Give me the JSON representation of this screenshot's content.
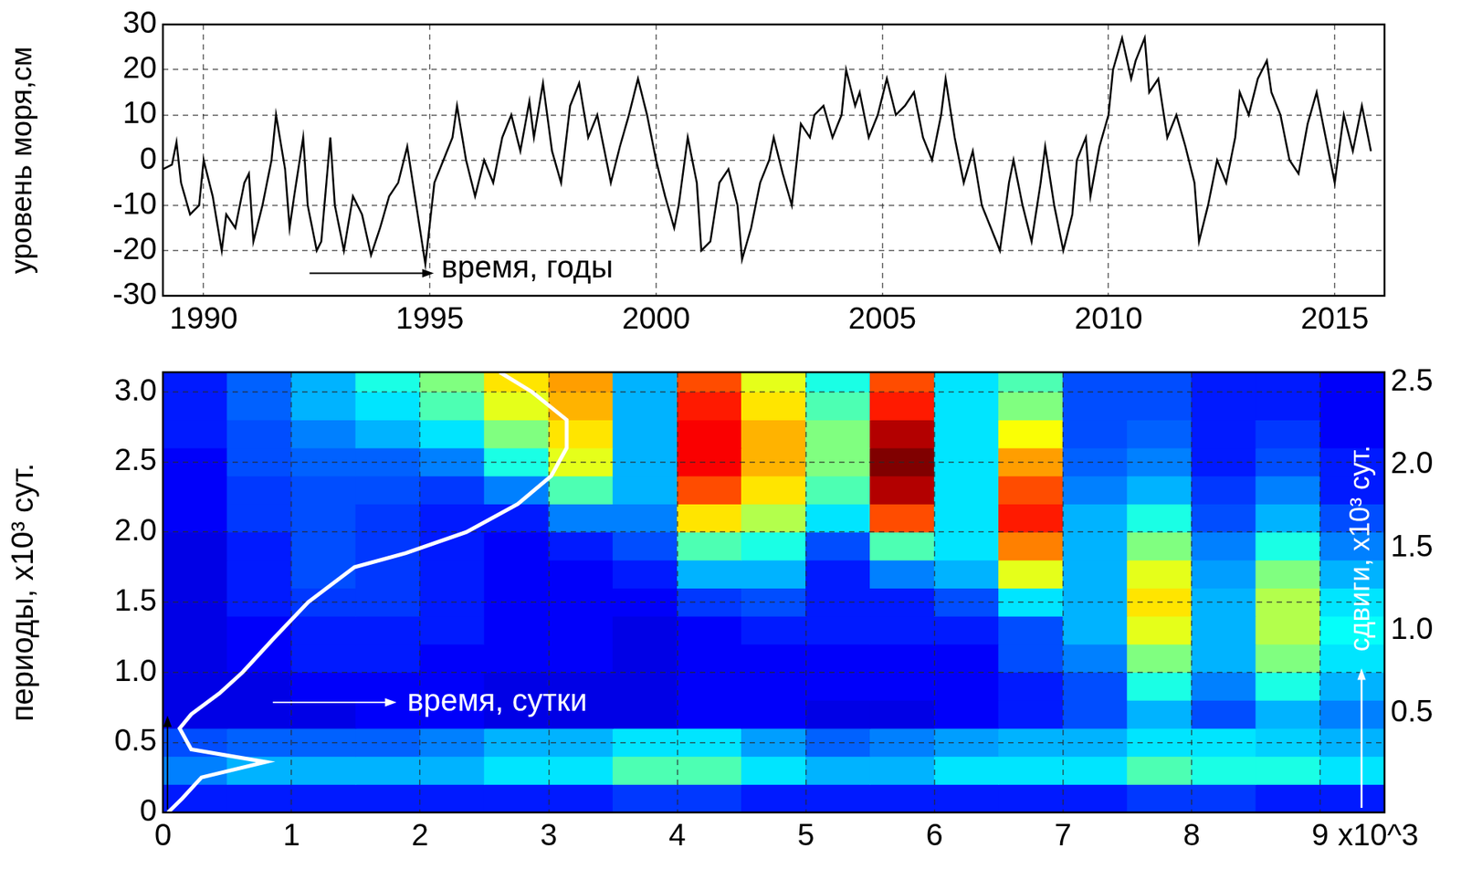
{
  "chart_data": [
    {
      "type": "line",
      "ylabel": "уровень моря,см",
      "color": "#000000",
      "grid": true,
      "xlim": [
        1989.1,
        2016.1
      ],
      "xticks": [
        1990,
        1995,
        2000,
        2005,
        2010,
        2015
      ],
      "ylim": [
        -30,
        30
      ],
      "yticks": [
        -30,
        -20,
        -10,
        0,
        10,
        20,
        30
      ],
      "annotations": [
        {
          "text": "время, годы"
        }
      ],
      "x": [
        1989.1,
        1989.3,
        1989.4,
        1989.5,
        1989.7,
        1989.9,
        1990.0,
        1990.2,
        1990.4,
        1990.5,
        1990.7,
        1990.9,
        1991.0,
        1991.1,
        1991.3,
        1991.5,
        1991.6,
        1991.8,
        1991.9,
        1992.0,
        1992.2,
        1992.3,
        1992.5,
        1992.6,
        1992.8,
        1992.9,
        1993.1,
        1993.3,
        1993.5,
        1993.7,
        1993.9,
        1994.1,
        1994.3,
        1994.5,
        1994.7,
        1994.9,
        1995.1,
        1995.3,
        1995.5,
        1995.6,
        1995.8,
        1996.0,
        1996.2,
        1996.4,
        1996.6,
        1996.8,
        1997.0,
        1997.2,
        1997.3,
        1997.5,
        1997.7,
        1997.9,
        1998.1,
        1998.3,
        1998.5,
        1998.7,
        1998.9,
        1999.0,
        1999.2,
        1999.4,
        1999.6,
        1999.8,
        2000.0,
        2000.2,
        2000.4,
        2000.5,
        2000.7,
        2000.9,
        2001.0,
        2001.2,
        2001.4,
        2001.6,
        2001.8,
        2001.9,
        2002.1,
        2002.3,
        2002.5,
        2002.6,
        2002.8,
        2003.0,
        2003.2,
        2003.4,
        2003.5,
        2003.7,
        2003.9,
        2004.1,
        2004.2,
        2004.4,
        2004.5,
        2004.7,
        2004.9,
        2005.1,
        2005.3,
        2005.5,
        2005.7,
        2005.9,
        2006.1,
        2006.3,
        2006.4,
        2006.6,
        2006.8,
        2007.0,
        2007.2,
        2007.4,
        2007.6,
        2007.8,
        2007.9,
        2008.1,
        2008.3,
        2008.5,
        2008.6,
        2008.8,
        2009.0,
        2009.2,
        2009.3,
        2009.5,
        2009.6,
        2009.8,
        2010.0,
        2010.1,
        2010.3,
        2010.5,
        2010.6,
        2010.8,
        2010.9,
        2011.1,
        2011.3,
        2011.5,
        2011.7,
        2011.9,
        2012.0,
        2012.2,
        2012.4,
        2012.6,
        2012.8,
        2012.9,
        2013.1,
        2013.3,
        2013.5,
        2013.6,
        2013.8,
        2014.0,
        2014.2,
        2014.4,
        2014.6,
        2014.8,
        2015.0,
        2015.2,
        2015.4,
        2015.6,
        2015.8
      ],
      "values": [
        -2,
        -1,
        4,
        -5,
        -12,
        -10,
        0,
        -8,
        -20,
        -12,
        -15,
        -5,
        -3,
        -18,
        -10,
        0,
        10,
        -2,
        -15,
        -8,
        5,
        -10,
        -20,
        -18,
        5,
        -10,
        -20,
        -8,
        -12,
        -21,
        -15,
        -8,
        -5,
        3,
        -10,
        -23,
        -5,
        0,
        5,
        12,
        0,
        -8,
        0,
        -5,
        5,
        10,
        2,
        13,
        5,
        17,
        2,
        -5,
        12,
        17,
        5,
        10,
        0,
        -5,
        3,
        10,
        18,
        10,
        0,
        -8,
        -15,
        -10,
        5,
        -5,
        -20,
        -18,
        -5,
        -2,
        -10,
        -22,
        -15,
        -5,
        0,
        5,
        -3,
        -10,
        8,
        5,
        10,
        12,
        5,
        10,
        20,
        12,
        15,
        5,
        10,
        18,
        10,
        12,
        15,
        5,
        0,
        10,
        18,
        5,
        -5,
        2,
        -10,
        -15,
        -20,
        -5,
        0,
        -10,
        -18,
        -5,
        3,
        -10,
        -20,
        -12,
        0,
        5,
        -8,
        3,
        10,
        20,
        27,
        18,
        22,
        27,
        15,
        18,
        5,
        10,
        3,
        -5,
        -18,
        -10,
        0,
        -5,
        5,
        15,
        10,
        18,
        22,
        15,
        10,
        0,
        -3,
        8,
        15,
        5,
        -5,
        10,
        2,
        12,
        2
      ]
    },
    {
      "type": "heatmap",
      "ylabel": "периоды, x10³ сут.",
      "y2label": "сдвиги, x10³ сут.",
      "xlabel": "x10^3",
      "grid": true,
      "xlim": [
        0,
        9.5
      ],
      "xticks": [
        0,
        1,
        2,
        3,
        4,
        5,
        6,
        7,
        8,
        9
      ],
      "ylim": [
        0,
        3.14
      ],
      "yticks": [
        0,
        0.5,
        {
          "value": 1,
          "label": "1.0"
        },
        1.5,
        {
          "value": 2,
          "label": "2.0"
        },
        2.5,
        {
          "value": 3,
          "label": "3.0"
        }
      ],
      "y2lim": [
        -0.1,
        2.56
      ],
      "y2ticks": [
        0.5,
        {
          "value": 1,
          "label": "1.0"
        },
        1.5,
        {
          "value": 2,
          "label": "2.0"
        },
        2.5
      ],
      "annotations": [
        {
          "text": "время, сутки"
        }
      ],
      "heatmap": {
        "x": [
          0.25,
          0.75,
          1.25,
          1.75,
          2.25,
          2.75,
          3.25,
          3.75,
          4.25,
          4.75,
          5.25,
          5.75,
          6.25,
          6.75,
          7.25,
          7.75,
          8.25,
          8.75,
          9.25
        ],
        "y": [
          0.1,
          0.3,
          0.5,
          0.7,
          0.9,
          1.1,
          1.3,
          1.5,
          1.7,
          1.9,
          2.1,
          2.3,
          2.5,
          2.7,
          2.9,
          3.1
        ],
        "cells": [
          [
            0.15,
            0.15,
            0.15,
            0.15,
            0.15,
            0.15,
            0.15,
            0.18,
            0.18,
            0.15,
            0.15,
            0.15,
            0.15,
            0.15,
            0.15,
            0.18,
            0.18,
            0.15,
            0.15
          ],
          [
            0.25,
            0.3,
            0.3,
            0.3,
            0.3,
            0.35,
            0.35,
            0.45,
            0.45,
            0.35,
            0.3,
            0.3,
            0.35,
            0.35,
            0.35,
            0.45,
            0.4,
            0.4,
            0.35
          ],
          [
            0.2,
            0.22,
            0.22,
            0.22,
            0.25,
            0.3,
            0.3,
            0.35,
            0.35,
            0.28,
            0.22,
            0.25,
            0.28,
            0.3,
            0.3,
            0.35,
            0.35,
            0.33,
            0.3
          ],
          [
            0.1,
            0.1,
            0.1,
            0.12,
            0.12,
            0.1,
            0.1,
            0.1,
            0.12,
            0.12,
            0.1,
            0.1,
            0.12,
            0.15,
            0.2,
            0.3,
            0.2,
            0.3,
            0.25
          ],
          [
            0.1,
            0.1,
            0.12,
            0.12,
            0.12,
            0.1,
            0.1,
            0.1,
            0.12,
            0.12,
            0.12,
            0.12,
            0.12,
            0.15,
            0.2,
            0.4,
            0.25,
            0.4,
            0.3
          ],
          [
            0.1,
            0.12,
            0.15,
            0.15,
            0.12,
            0.12,
            0.12,
            0.1,
            0.12,
            0.12,
            0.12,
            0.12,
            0.12,
            0.2,
            0.25,
            0.5,
            0.3,
            0.5,
            0.35
          ],
          [
            0.1,
            0.12,
            0.15,
            0.15,
            0.15,
            0.12,
            0.12,
            0.1,
            0.12,
            0.15,
            0.15,
            0.15,
            0.15,
            0.2,
            0.3,
            0.6,
            0.3,
            0.55,
            0.38
          ],
          [
            0.1,
            0.15,
            0.18,
            0.18,
            0.15,
            0.12,
            0.12,
            0.12,
            0.18,
            0.2,
            0.15,
            0.15,
            0.2,
            0.35,
            0.3,
            0.65,
            0.3,
            0.55,
            0.35
          ],
          [
            0.1,
            0.15,
            0.2,
            0.18,
            0.15,
            0.12,
            0.12,
            0.15,
            0.3,
            0.3,
            0.15,
            0.25,
            0.3,
            0.6,
            0.3,
            0.6,
            0.28,
            0.5,
            0.3
          ],
          [
            0.1,
            0.15,
            0.2,
            0.18,
            0.15,
            0.12,
            0.15,
            0.2,
            0.45,
            0.4,
            0.2,
            0.45,
            0.35,
            0.75,
            0.3,
            0.5,
            0.25,
            0.4,
            0.25
          ],
          [
            0.12,
            0.18,
            0.2,
            0.18,
            0.15,
            0.15,
            0.25,
            0.25,
            0.65,
            0.55,
            0.35,
            0.8,
            0.35,
            0.85,
            0.3,
            0.4,
            0.2,
            0.3,
            0.2
          ],
          [
            0.12,
            0.18,
            0.2,
            0.2,
            0.18,
            0.25,
            0.45,
            0.3,
            0.8,
            0.65,
            0.45,
            0.95,
            0.35,
            0.8,
            0.25,
            0.3,
            0.18,
            0.25,
            0.15
          ],
          [
            0.12,
            0.2,
            0.22,
            0.22,
            0.25,
            0.4,
            0.6,
            0.3,
            0.88,
            0.7,
            0.5,
            1.0,
            0.35,
            0.72,
            0.22,
            0.25,
            0.15,
            0.2,
            0.15
          ],
          [
            0.15,
            0.2,
            0.25,
            0.3,
            0.35,
            0.5,
            0.65,
            0.3,
            0.88,
            0.7,
            0.5,
            0.95,
            0.35,
            0.62,
            0.2,
            0.22,
            0.15,
            0.18,
            0.12
          ],
          [
            0.15,
            0.22,
            0.3,
            0.35,
            0.45,
            0.6,
            0.7,
            0.3,
            0.85,
            0.65,
            0.45,
            0.85,
            0.35,
            0.5,
            0.2,
            0.2,
            0.15,
            0.15,
            0.12
          ],
          [
            0.15,
            0.22,
            0.3,
            0.4,
            0.5,
            0.65,
            0.72,
            0.3,
            0.8,
            0.6,
            0.4,
            0.8,
            0.35,
            0.45,
            0.2,
            0.2,
            0.15,
            0.15,
            0.12
          ]
        ]
      },
      "series": [
        {
          "type": "line",
          "color": "#ffffff",
          "x": [
            0.04,
            0.15,
            0.3,
            0.8,
            0.22,
            0.13,
            0.22,
            0.44,
            0.62,
            0.87,
            1.13,
            1.49,
            1.89,
            2.36,
            2.76,
            3.02,
            3.14,
            3.14,
            2.87,
            2.62
          ],
          "values": [
            0.0,
            0.1,
            0.25,
            0.36,
            0.45,
            0.6,
            0.7,
            0.85,
            1.0,
            1.25,
            1.5,
            1.75,
            1.85,
            2.0,
            2.2,
            2.4,
            2.6,
            2.8,
            3.0,
            3.14
          ]
        }
      ]
    }
  ]
}
